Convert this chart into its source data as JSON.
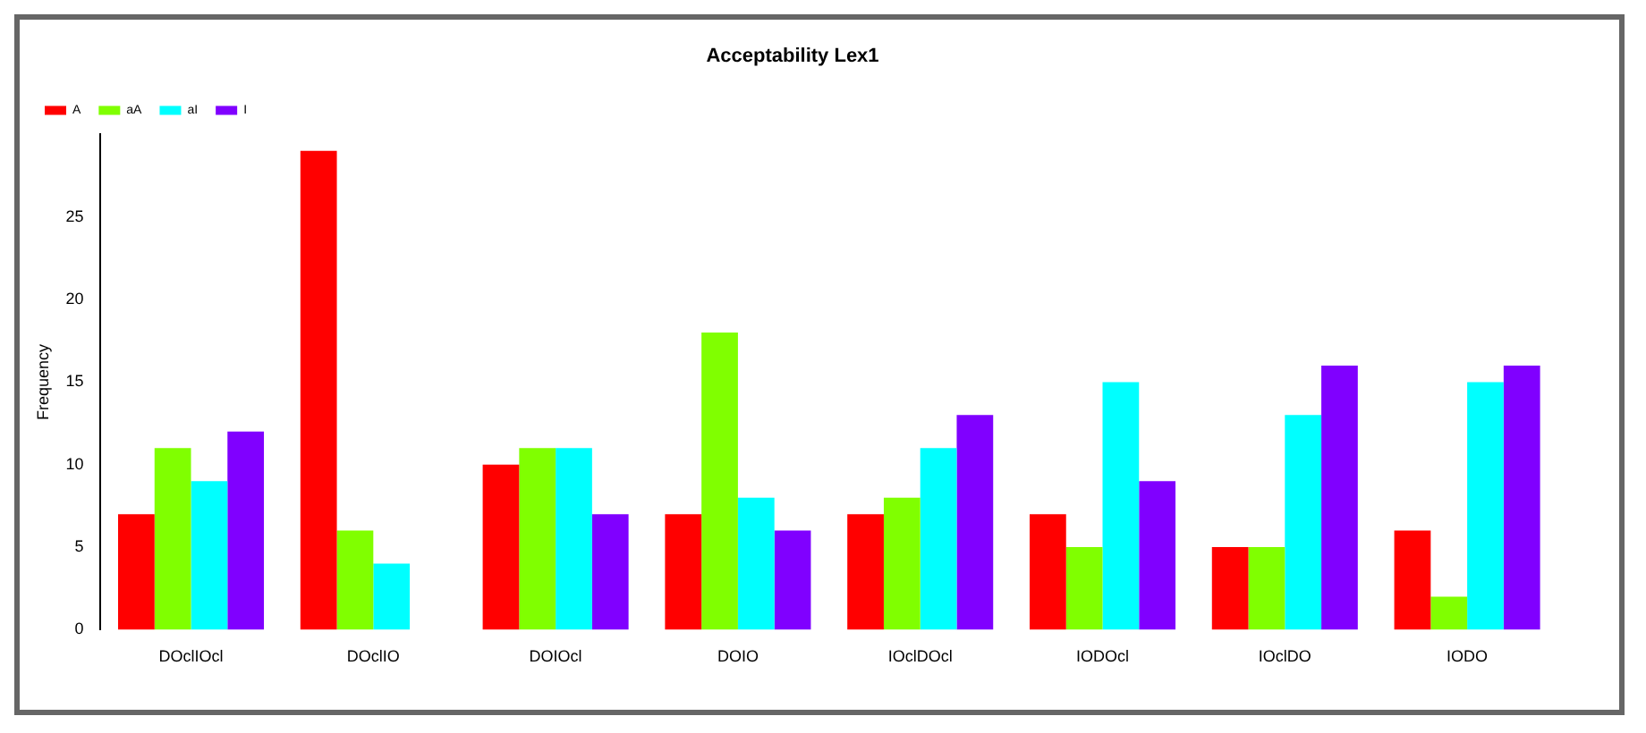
{
  "chart_data": {
    "type": "bar",
    "title": "Acceptability Lex1",
    "ylabel": "Frequency",
    "categories": [
      "DOclIOcl",
      "DOclIO",
      "DOIOcl",
      "DOIO",
      "IOclDOcl",
      "IODOcl",
      "IOclDO",
      "IODO"
    ],
    "series": [
      {
        "name": "A",
        "color": "#ff0000",
        "values": [
          7,
          29,
          10,
          7,
          7,
          7,
          5,
          6
        ]
      },
      {
        "name": "aA",
        "color": "#80ff00",
        "values": [
          11,
          6,
          11,
          18,
          8,
          5,
          5,
          2
        ]
      },
      {
        "name": "aI",
        "color": "#00ffff",
        "values": [
          9,
          4,
          11,
          8,
          11,
          15,
          13,
          15
        ]
      },
      {
        "name": "I",
        "color": "#8000ff",
        "values": [
          12,
          0,
          7,
          6,
          13,
          9,
          16,
          16
        ]
      }
    ],
    "ylim": [
      0,
      30
    ],
    "yticks": [
      0,
      5,
      10,
      15,
      20,
      25
    ],
    "grid": false,
    "legend": "top left"
  }
}
